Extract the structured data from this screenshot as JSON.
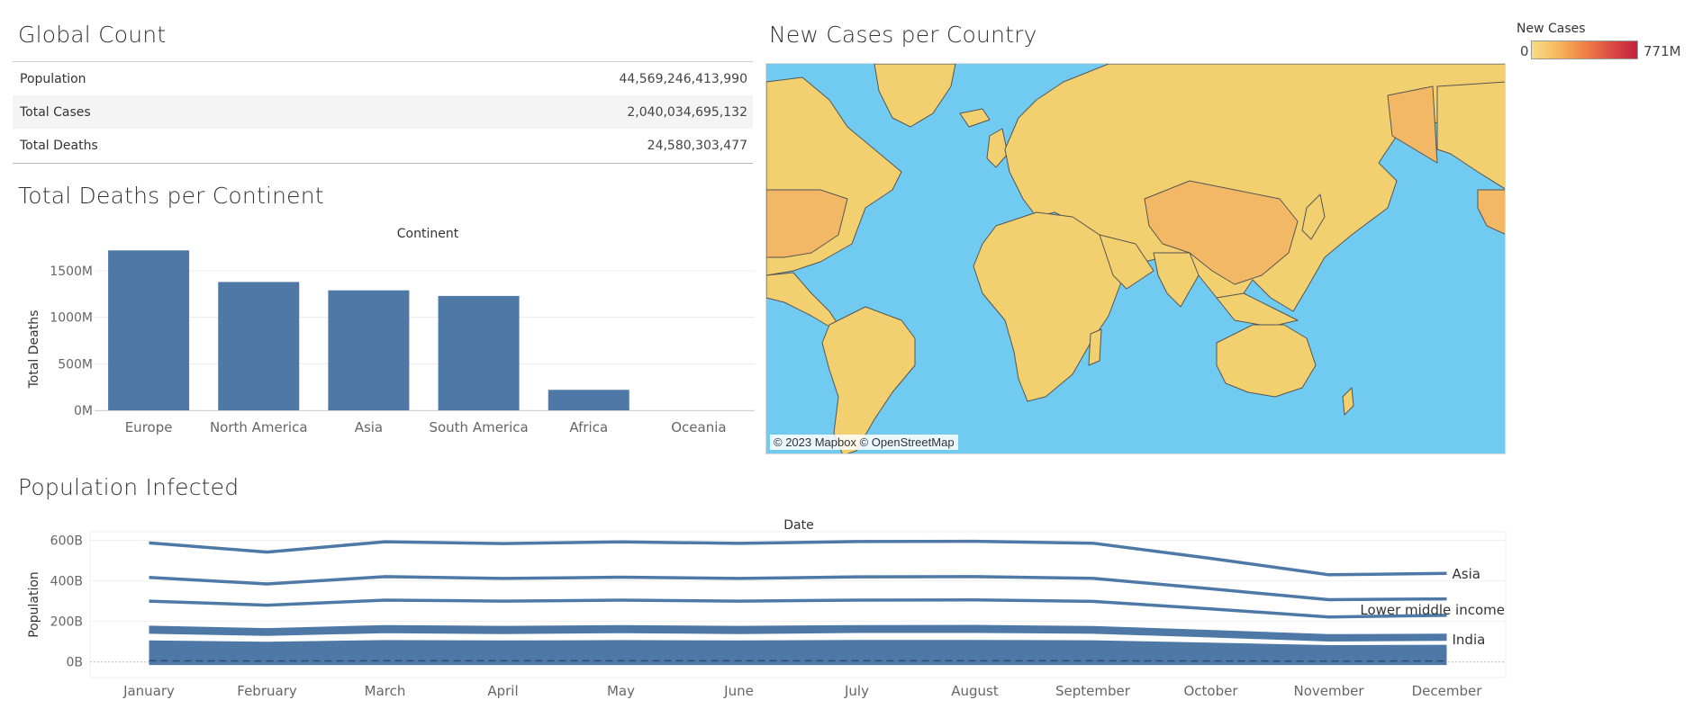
{
  "global_count": {
    "title": "Global Count",
    "rows": [
      {
        "label": "Population",
        "value": "44,569,246,413,990"
      },
      {
        "label": "Total Cases",
        "value": "2,040,034,695,132"
      },
      {
        "label": "Total Deaths",
        "value": "24,580,303,477"
      }
    ]
  },
  "deaths_chart": {
    "title": "Total Deaths per Continent",
    "column_header": "Continent",
    "ylabel": "Total Deaths",
    "yticks": [
      "1500M",
      "1000M",
      "500M",
      "0M"
    ]
  },
  "map": {
    "title": "New Cases per Country",
    "attribution": "© 2023 Mapbox © OpenStreetMap",
    "legend": {
      "title": "New Cases",
      "min": "0",
      "max": "771M"
    },
    "colors": {
      "ocean": "#71cbf0",
      "land_low": "#f3d06f",
      "land_mid": "#f3b866",
      "border": "#555555"
    }
  },
  "population_chart": {
    "title": "Population Infected",
    "column_header": "Date",
    "ylabel": "Population",
    "yticks": [
      "600B",
      "400B",
      "200B",
      "0B"
    ],
    "labels": [
      "Asia",
      "Lower middle income",
      "India"
    ]
  },
  "colors": {
    "bar": "#4e79a7",
    "line": "#4e79a7",
    "grid": "#ececec",
    "text": "#333333"
  },
  "chart_data": [
    {
      "type": "bar",
      "title": "Total Deaths per Continent",
      "xlabel": "Continent",
      "ylabel": "Total Deaths",
      "categories": [
        "Europe",
        "North America",
        "Asia",
        "South America",
        "Africa",
        "Oceania"
      ],
      "values": [
        1720,
        1380,
        1290,
        1230,
        220,
        0
      ],
      "unit": "M",
      "ylim": [
        0,
        1800
      ],
      "grid": true
    },
    {
      "type": "line",
      "title": "Population Infected",
      "xlabel": "Date",
      "ylabel": "Population",
      "unit": "B",
      "x": [
        "January",
        "February",
        "March",
        "April",
        "May",
        "June",
        "July",
        "August",
        "September",
        "October",
        "November",
        "December"
      ],
      "ylim": [
        -10,
        620
      ],
      "series": [
        {
          "values": [
            587,
            542,
            593,
            584,
            592,
            585,
            594,
            595,
            586,
            511,
            430,
            437
          ]
        },
        {
          "values": [
            417,
            385,
            421,
            412,
            418,
            412,
            420,
            421,
            413,
            361,
            307,
            311
          ]
        },
        {
          "name": "Lower middle income",
          "values": [
            300,
            280,
            305,
            300,
            305,
            300,
            305,
            306,
            299,
            262,
            222,
            230
          ]
        },
        {
          "values": [
            168,
            156,
            171,
            167,
            171,
            167,
            171,
            172,
            166,
            147,
            126,
            129
          ]
        },
        {
          "values": [
            155,
            145,
            158,
            154,
            158,
            154,
            159,
            159,
            155,
            136,
            115,
            118
          ]
        },
        {
          "name": "India",
          "values": [
            150,
            140,
            153,
            149,
            153,
            149,
            154,
            154,
            150,
            132,
            112,
            115
          ]
        },
        {
          "values": [
            95,
            89,
            97,
            95,
            97,
            95,
            98,
            98,
            96,
            84,
            72,
            74
          ]
        },
        {
          "values": [
            78,
            73,
            80,
            78,
            80,
            78,
            80,
            80,
            78,
            69,
            59,
            60
          ]
        },
        {
          "values": [
            60,
            56,
            61,
            60,
            61,
            60,
            62,
            62,
            60,
            53,
            45,
            46
          ]
        },
        {
          "values": [
            45,
            42,
            46,
            45,
            46,
            45,
            46,
            46,
            45,
            40,
            34,
            35
          ]
        },
        {
          "values": [
            30,
            28,
            31,
            30,
            31,
            30,
            31,
            31,
            30,
            27,
            23,
            23
          ]
        },
        {
          "values": [
            18,
            17,
            19,
            18,
            19,
            18,
            19,
            19,
            18,
            16,
            14,
            14
          ]
        },
        {
          "values": [
            6,
            5,
            6,
            6,
            6,
            6,
            6,
            6,
            6,
            5,
            4,
            5
          ]
        },
        {
          "values": [
            -4,
            -4,
            -4,
            -4,
            -4,
            -4,
            -4,
            -4,
            -4,
            -4,
            -4,
            -4
          ]
        }
      ],
      "grid": true
    }
  ]
}
